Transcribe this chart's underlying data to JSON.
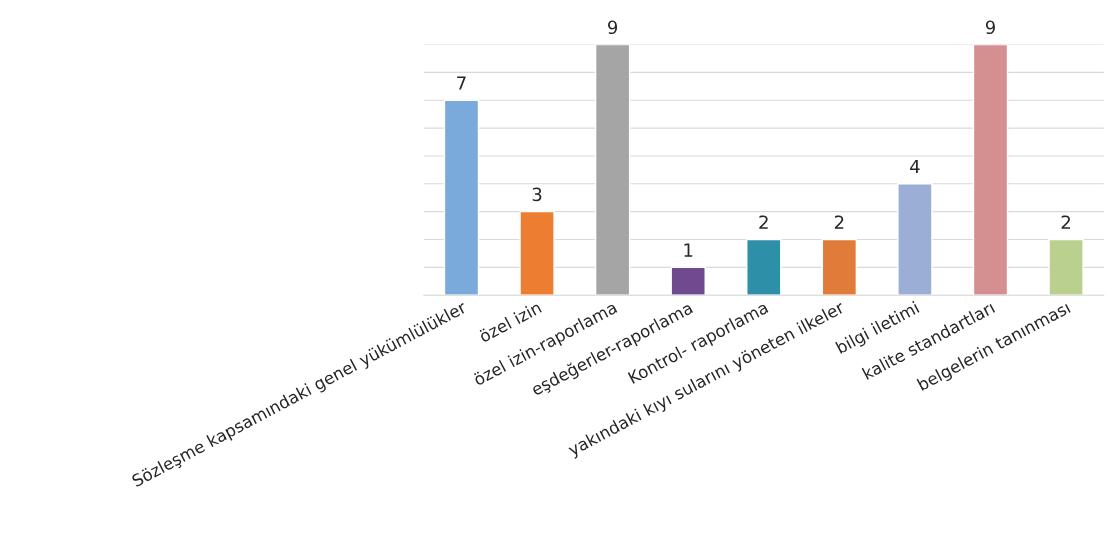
{
  "chart_data": {
    "type": "bar",
    "categories": [
      "Sözleşme kapsamındaki genel yükümlülükler",
      "özel izin",
      "özel izin-raporlama",
      "eşdeğerler-raporlama",
      "Kontrol- raporlama",
      "yakındaki kıyı sularını yöneten ilkeler",
      "bilgi iletimi",
      "kalite standartları",
      "belgelerin tanınması"
    ],
    "values": [
      7,
      3,
      9,
      1,
      2,
      2,
      4,
      9,
      2
    ],
    "colors": [
      "#7aaadc",
      "#ed7d31",
      "#a5a5a5",
      "#6f4a8e",
      "#2e8fa8",
      "#e07b39",
      "#9aaed6",
      "#d49090",
      "#b9d08f"
    ],
    "ylim": [
      0,
      9
    ],
    "yticks": [
      {
        "value": 0,
        "label": null
      },
      {
        "value": 1,
        "label": null
      },
      {
        "value": 2,
        "label": null
      },
      {
        "value": 3,
        "label": null
      },
      {
        "value": 4,
        "label": null
      },
      {
        "value": 5,
        "label": null
      },
      {
        "value": 6,
        "label": null
      },
      {
        "value": 7,
        "label": null
      },
      {
        "value": 8,
        "label": null
      },
      {
        "value": 9,
        "label": null
      }
    ],
    "grid": "y",
    "tick_labels": "x",
    "data_labels": true
  }
}
